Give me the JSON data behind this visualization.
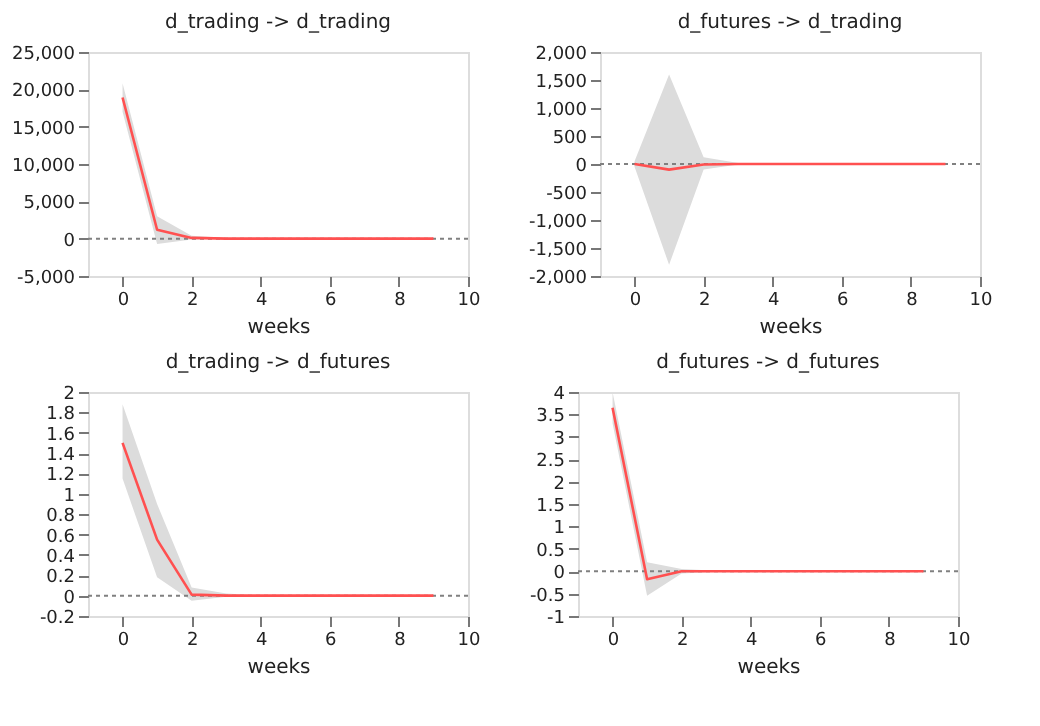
{
  "chart_data": [
    {
      "type": "line",
      "title": "d_trading -> d_trading",
      "xlabel": "weeks",
      "x": [
        0,
        1,
        2,
        3,
        4,
        5,
        6,
        7,
        8,
        9
      ],
      "xlim": [
        -1,
        10
      ],
      "xticks": [
        0,
        2,
        4,
        6,
        8,
        10
      ],
      "ylim": [
        -5000,
        25000
      ],
      "yticks": [
        {
          "value": -5000,
          "label": "-5,000"
        },
        0,
        {
          "value": 5000,
          "label": "5,000"
        },
        {
          "value": 10000,
          "label": "10,000"
        },
        {
          "value": 15000,
          "label": "15,000"
        },
        {
          "value": 20000,
          "label": "20,000"
        },
        {
          "value": 25000,
          "label": "25,000"
        }
      ],
      "series": [
        {
          "color": "#ff5050",
          "values": [
            18900,
            1200,
            100,
            0,
            0,
            0,
            0,
            0,
            0,
            0
          ],
          "lower": [
            17000,
            -700,
            -100,
            -20,
            0,
            0,
            0,
            0,
            0,
            0
          ],
          "upper": [
            20800,
            3000,
            400,
            100,
            20,
            0,
            0,
            0,
            0,
            0
          ]
        }
      ],
      "ref_lines": [
        {
          "axis": "y",
          "value": 0,
          "color": "#808080",
          "line_style": "dotted"
        }
      ],
      "grid": false,
      "marker": "none"
    },
    {
      "type": "line",
      "title": "d_futures -> d_trading",
      "xlabel": "weeks",
      "x": [
        0,
        1,
        2,
        3,
        4,
        5,
        6,
        7,
        8,
        9
      ],
      "xlim": [
        -1,
        10
      ],
      "xticks": [
        0,
        2,
        4,
        6,
        8,
        10
      ],
      "ylim": [
        -2000,
        2000
      ],
      "yticks": [
        {
          "value": -2000,
          "label": "-2,000"
        },
        {
          "value": -1500,
          "label": "-1,500"
        },
        {
          "value": -1000,
          "label": "-1,000"
        },
        {
          "value": -500,
          "label": "-500"
        },
        0,
        500,
        {
          "value": 1000,
          "label": "1,000"
        },
        {
          "value": 1500,
          "label": "1,500"
        },
        {
          "value": 2000,
          "label": "2,000"
        }
      ],
      "series": [
        {
          "color": "#ff5050",
          "values": [
            0,
            -100,
            -10,
            0,
            0,
            0,
            0,
            0,
            0,
            0
          ],
          "lower": [
            -50,
            -1800,
            -100,
            -10,
            0,
            0,
            0,
            0,
            0,
            0
          ],
          "upper": [
            50,
            1600,
            120,
            20,
            0,
            0,
            0,
            0,
            0,
            0
          ]
        }
      ],
      "ref_lines": [
        {
          "axis": "y",
          "value": 0,
          "color": "#808080",
          "line_style": "dotted"
        }
      ],
      "grid": false,
      "marker": "none"
    },
    {
      "type": "line",
      "title": "d_trading -> d_futures",
      "xlabel": "weeks",
      "x": [
        0,
        1,
        2,
        3,
        4,
        5,
        6,
        7,
        8,
        9
      ],
      "xlim": [
        -1,
        10
      ],
      "xticks": [
        0,
        2,
        4,
        6,
        8,
        10
      ],
      "ylim": [
        -0.2,
        2
      ],
      "yticks": [
        {
          "value": -0.2,
          "label": "-0.2"
        },
        0,
        0.2,
        0.4,
        0.6,
        0.8,
        1,
        1.2,
        1.4,
        1.6,
        1.8,
        2
      ],
      "series": [
        {
          "color": "#ff5050",
          "values": [
            1.5,
            0.55,
            0.01,
            0,
            0,
            0,
            0,
            0,
            0,
            0
          ],
          "lower": [
            1.15,
            0.18,
            -0.05,
            -0.01,
            0,
            0,
            0,
            0,
            0,
            0
          ],
          "upper": [
            1.88,
            0.9,
            0.08,
            0.02,
            0,
            0,
            0,
            0,
            0,
            0
          ]
        }
      ],
      "ref_lines": [
        {
          "axis": "y",
          "value": 0,
          "color": "#808080",
          "line_style": "dotted"
        }
      ],
      "grid": false,
      "marker": "none"
    },
    {
      "type": "line",
      "title": "d_futures -> d_futures",
      "xlabel": "weeks",
      "x": [
        0,
        1,
        2,
        3,
        4,
        5,
        6,
        7,
        8,
        9
      ],
      "xlim": [
        -1,
        10
      ],
      "xticks": [
        0,
        2,
        4,
        6,
        8,
        10
      ],
      "ylim": [
        -1,
        4
      ],
      "yticks": [
        {
          "value": -1,
          "label": "-1"
        },
        {
          "value": -0.5,
          "label": "-0.5"
        },
        0,
        0.5,
        1,
        1.5,
        2,
        2.5,
        3,
        3.5,
        4
      ],
      "series": [
        {
          "color": "#ff5050",
          "values": [
            3.65,
            -0.18,
            0,
            0,
            0,
            0,
            0,
            0,
            0,
            0
          ],
          "lower": [
            3.3,
            -0.55,
            -0.05,
            -0.01,
            0,
            0,
            0,
            0,
            0,
            0
          ],
          "upper": [
            4,
            0.2,
            0.05,
            0.01,
            0,
            0,
            0,
            0,
            0,
            0
          ]
        }
      ],
      "ref_lines": [
        {
          "axis": "y",
          "value": 0,
          "color": "#808080",
          "line_style": "dotted"
        }
      ],
      "grid": false,
      "marker": "none"
    }
  ]
}
